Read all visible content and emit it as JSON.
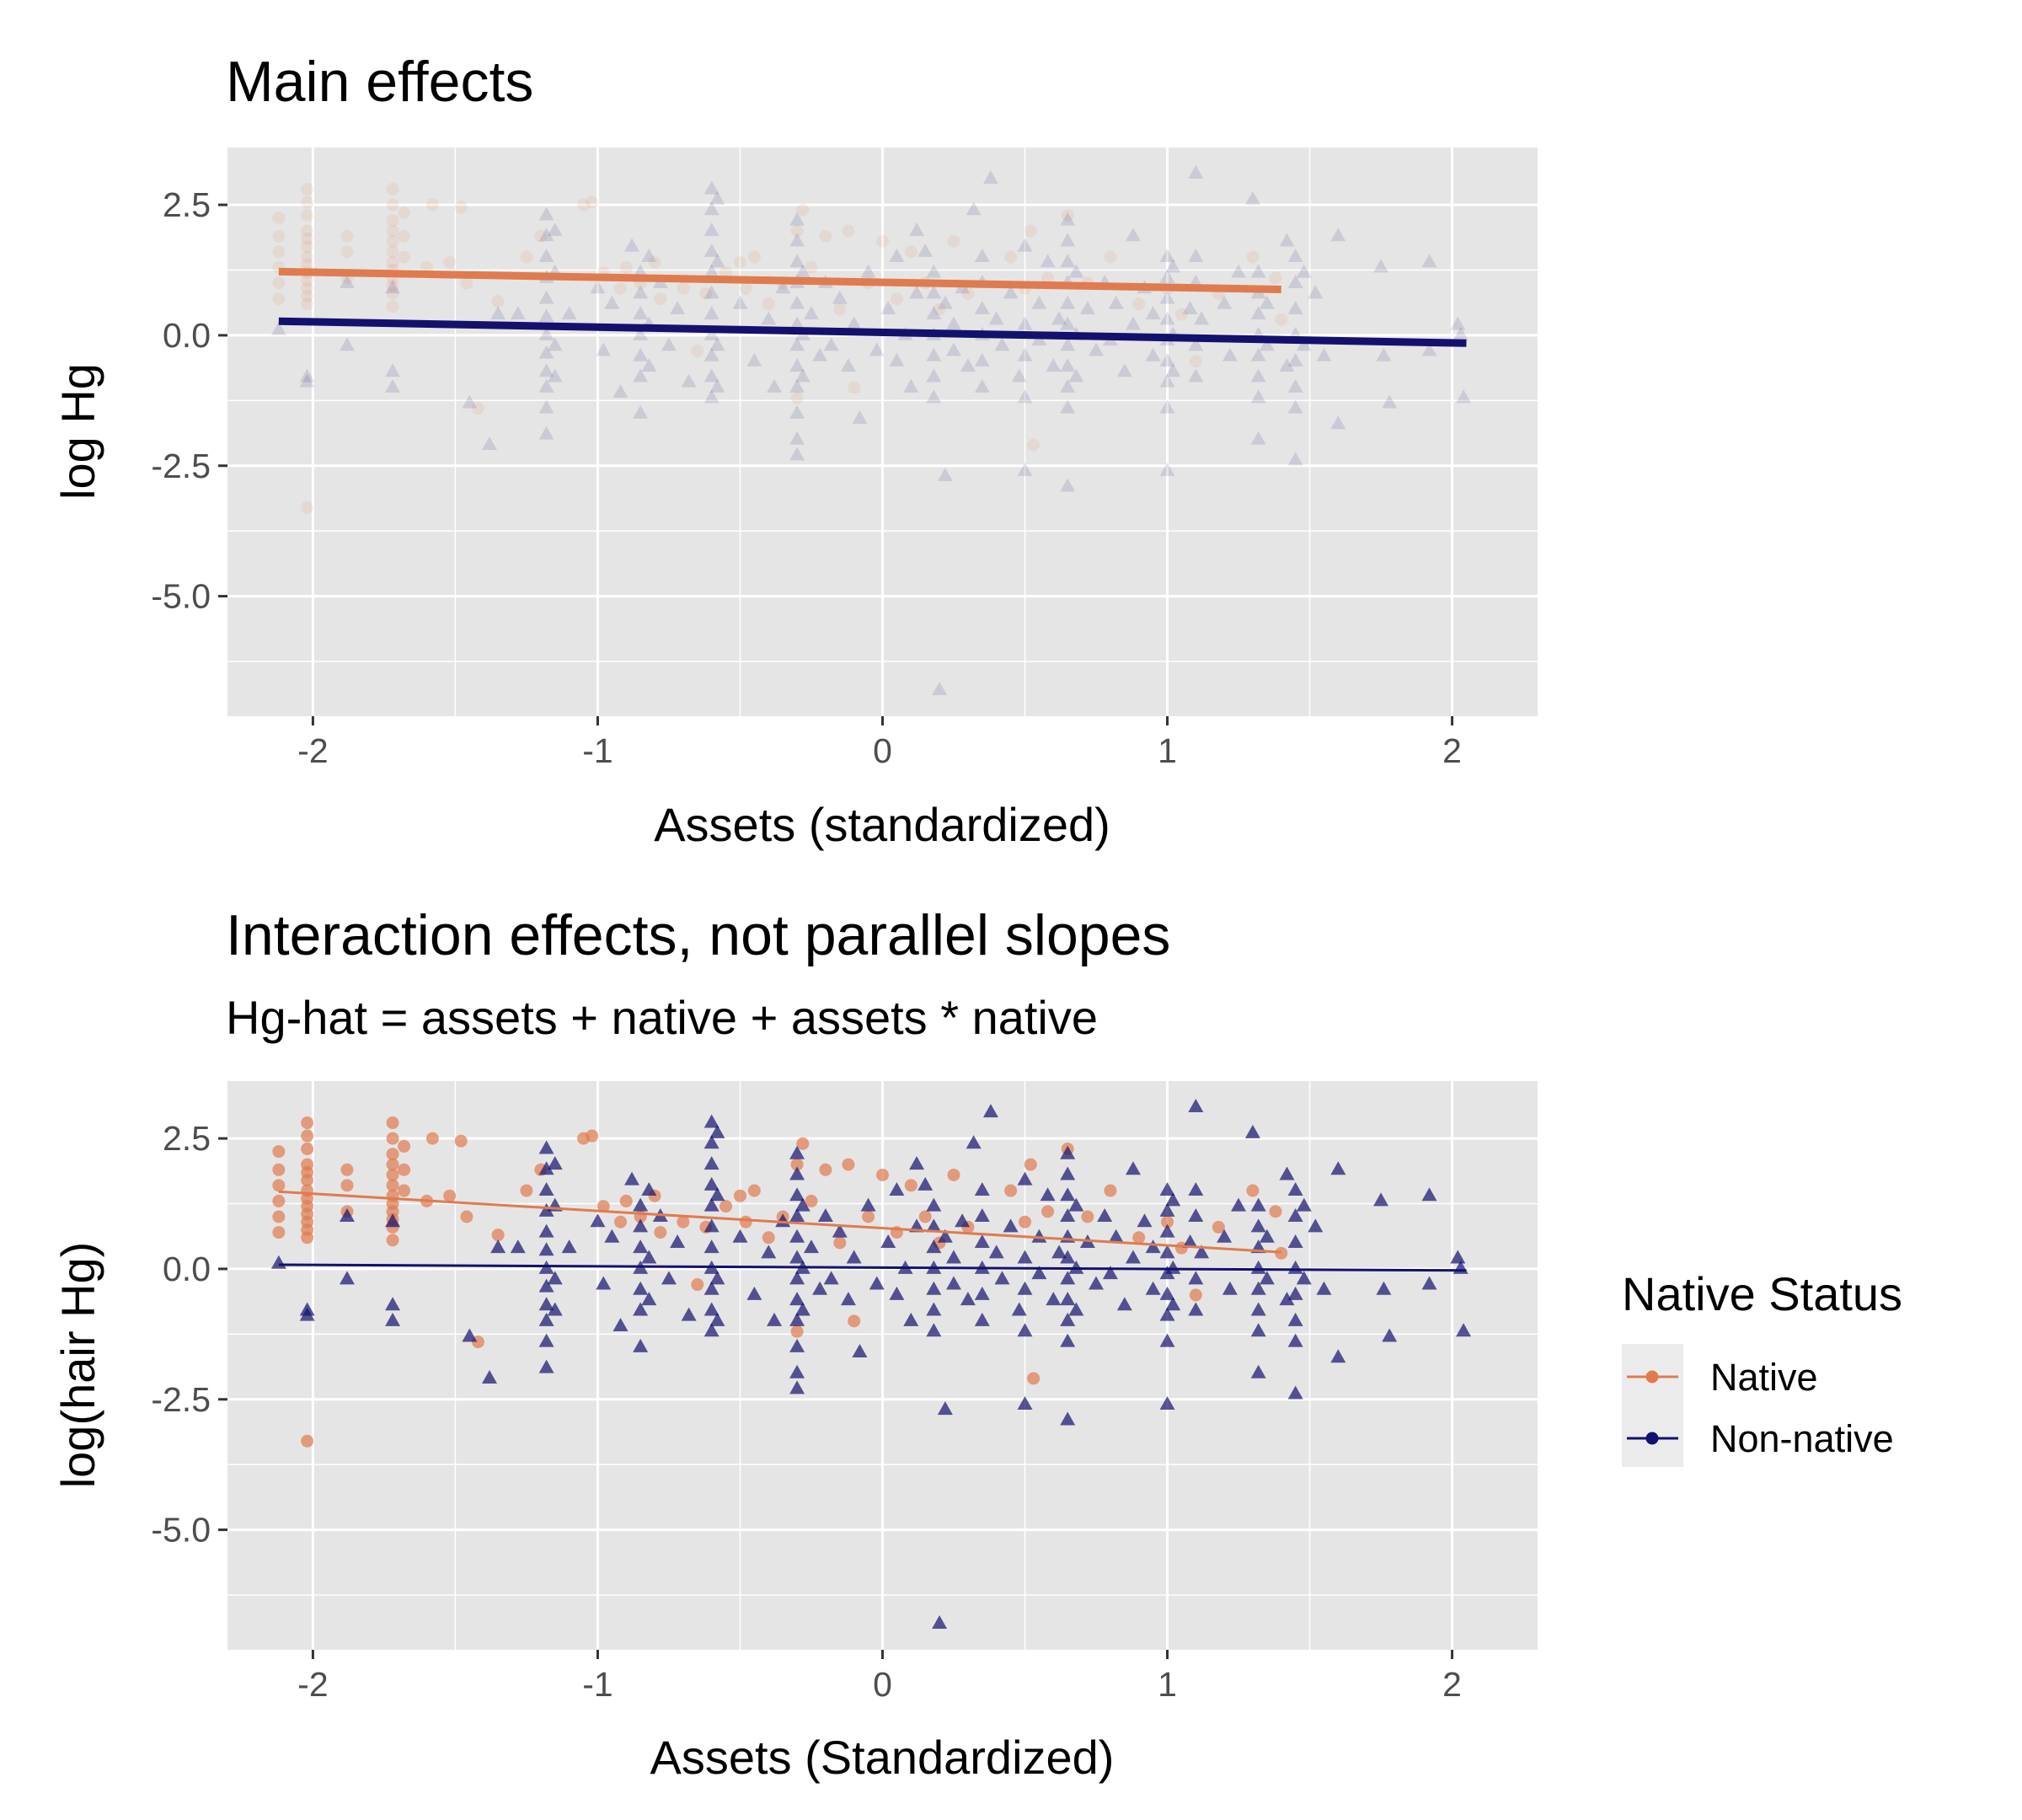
{
  "chart_data": [
    {
      "type": "scatter",
      "title": "Main effects",
      "subtitle": "",
      "xlabel": "Assets (standardized)",
      "ylabel": "log Hg",
      "xlim": [
        -2.3,
        2.3
      ],
      "ylim": [
        -7.3,
        3.6
      ],
      "xticks": [
        -2,
        -1,
        0,
        1,
        2
      ],
      "yticks": [
        2.5,
        0.0,
        -2.5,
        -5.0
      ],
      "xtick_labels": [
        "-2",
        "-1",
        "0",
        "1",
        "2"
      ],
      "ytick_labels": [
        "2.5",
        "0.0",
        "-2.5",
        "-5.0"
      ],
      "grid": true,
      "point_alpha": 0.12,
      "line_width": 9,
      "series": [
        {
          "key": "native",
          "fit": {
            "x": [
              -2.12,
              1.4
            ],
            "y": [
              1.22,
              0.88
            ]
          }
        },
        {
          "key": "nonnative",
          "fit": {
            "x": [
              -2.12,
              2.05
            ],
            "y": [
              0.27,
              -0.15
            ]
          }
        }
      ]
    },
    {
      "type": "scatter",
      "title": "Interaction effects, not parallel slopes",
      "subtitle": "Hg-hat = assets + native + assets * native",
      "xlabel": "Assets (Standardized)",
      "ylabel": "log(hair Hg)",
      "xlim": [
        -2.3,
        2.3
      ],
      "ylim": [
        -7.3,
        3.6
      ],
      "xticks": [
        -2,
        -1,
        0,
        1,
        2
      ],
      "yticks": [
        2.5,
        0.0,
        -2.5,
        -5.0
      ],
      "xtick_labels": [
        "-2",
        "-1",
        "0",
        "1",
        "2"
      ],
      "ytick_labels": [
        "2.5",
        "0.0",
        "-2.5",
        "-5.0"
      ],
      "grid": true,
      "point_alpha": 0.7,
      "line_width": 3,
      "series": [
        {
          "key": "native",
          "fit": {
            "x": [
              -2.12,
              1.4
            ],
            "y": [
              1.48,
              0.32
            ]
          }
        },
        {
          "key": "nonnative",
          "fit": {
            "x": [
              -2.12,
              2.05
            ],
            "y": [
              0.08,
              -0.03
            ]
          }
        }
      ]
    }
  ],
  "legend": {
    "title": "Native Status",
    "placement": "right",
    "entries": [
      {
        "key": "native",
        "label": "Native",
        "color": "#e07b4f",
        "shape": "circle"
      },
      {
        "key": "nonnative",
        "label": "Non-native",
        "color": "#14116e",
        "shape": "triangle"
      }
    ]
  },
  "points": {
    "native": [
      [
        -2.12,
        2.25
      ],
      [
        -2.12,
        1.9
      ],
      [
        -2.12,
        1.6
      ],
      [
        -2.12,
        1.3
      ],
      [
        -2.12,
        1.0
      ],
      [
        -2.12,
        0.7
      ],
      [
        -2.02,
        2.8
      ],
      [
        -2.02,
        2.55
      ],
      [
        -2.02,
        2.3
      ],
      [
        -2.02,
        2.0
      ],
      [
        -2.02,
        1.85
      ],
      [
        -2.02,
        1.7
      ],
      [
        -2.02,
        1.5
      ],
      [
        -2.02,
        1.35
      ],
      [
        -2.02,
        1.2
      ],
      [
        -2.02,
        1.05
      ],
      [
        -2.02,
        0.9
      ],
      [
        -2.02,
        0.75
      ],
      [
        -2.02,
        0.6
      ],
      [
        -2.02,
        -3.3
      ],
      [
        -1.88,
        1.9
      ],
      [
        -1.88,
        1.6
      ],
      [
        -1.88,
        1.1
      ],
      [
        -1.72,
        2.8
      ],
      [
        -1.72,
        2.5
      ],
      [
        -1.72,
        2.2
      ],
      [
        -1.72,
        2.0
      ],
      [
        -1.72,
        1.8
      ],
      [
        -1.72,
        1.6
      ],
      [
        -1.72,
        1.4
      ],
      [
        -1.72,
        1.25
      ],
      [
        -1.72,
        1.1
      ],
      [
        -1.72,
        0.95
      ],
      [
        -1.72,
        0.8
      ],
      [
        -1.72,
        0.55
      ],
      [
        -1.68,
        2.35
      ],
      [
        -1.68,
        1.9
      ],
      [
        -1.68,
        1.5
      ],
      [
        -1.6,
        1.3
      ],
      [
        -1.58,
        2.5
      ],
      [
        -1.52,
        1.4
      ],
      [
        -1.48,
        2.45
      ],
      [
        -1.46,
        1.0
      ],
      [
        -1.42,
        -1.4
      ],
      [
        -1.35,
        0.65
      ],
      [
        -1.25,
        1.5
      ],
      [
        -1.2,
        1.9
      ],
      [
        -1.05,
        2.5
      ],
      [
        -1.02,
        2.55
      ],
      [
        -0.98,
        1.2
      ],
      [
        -0.92,
        0.9
      ],
      [
        -0.9,
        1.3
      ],
      [
        -0.85,
        1.0
      ],
      [
        -0.8,
        1.4
      ],
      [
        -0.78,
        0.7
      ],
      [
        -0.7,
        0.9
      ],
      [
        -0.65,
        -0.3
      ],
      [
        -0.62,
        0.8
      ],
      [
        -0.55,
        1.2
      ],
      [
        -0.5,
        1.4
      ],
      [
        -0.48,
        0.9
      ],
      [
        -0.45,
        1.5
      ],
      [
        -0.4,
        0.6
      ],
      [
        -0.35,
        1.0
      ],
      [
        -0.3,
        2.0
      ],
      [
        -0.28,
        2.4
      ],
      [
        -0.25,
        1.3
      ],
      [
        -0.3,
        -1.2
      ],
      [
        -0.2,
        1.9
      ],
      [
        -0.15,
        0.5
      ],
      [
        -0.12,
        2.0
      ],
      [
        -0.1,
        -1.0
      ],
      [
        -0.05,
        1.0
      ],
      [
        0.0,
        1.8
      ],
      [
        0.05,
        0.7
      ],
      [
        0.1,
        1.6
      ],
      [
        0.15,
        1.0
      ],
      [
        0.2,
        0.5
      ],
      [
        0.25,
        1.8
      ],
      [
        0.3,
        0.8
      ],
      [
        0.45,
        1.5
      ],
      [
        0.5,
        0.9
      ],
      [
        0.52,
        2.0
      ],
      [
        0.53,
        -2.1
      ],
      [
        0.58,
        1.1
      ],
      [
        0.65,
        2.3
      ],
      [
        0.72,
        1.0
      ],
      [
        0.8,
        1.5
      ],
      [
        0.9,
        0.6
      ],
      [
        1.0,
        0.9
      ],
      [
        1.05,
        0.4
      ],
      [
        1.1,
        -0.5
      ],
      [
        1.18,
        0.8
      ],
      [
        1.3,
        1.5
      ],
      [
        1.38,
        1.1
      ],
      [
        1.4,
        0.3
      ]
    ],
    "nonnative": [
      [
        -2.12,
        0.1
      ],
      [
        -2.02,
        -0.8
      ],
      [
        -2.02,
        -0.9
      ],
      [
        -1.88,
        1.0
      ],
      [
        -1.88,
        -0.2
      ],
      [
        -1.72,
        -0.7
      ],
      [
        -1.72,
        -1.0
      ],
      [
        -1.72,
        0.9
      ],
      [
        -1.45,
        -1.3
      ],
      [
        -1.38,
        -2.1
      ],
      [
        -1.35,
        0.4
      ],
      [
        -1.28,
        0.4
      ],
      [
        -1.18,
        2.3
      ],
      [
        -1.18,
        1.9
      ],
      [
        -1.18,
        1.5
      ],
      [
        -1.18,
        1.1
      ],
      [
        -1.18,
        0.7
      ],
      [
        -1.18,
        0.35
      ],
      [
        -1.18,
        0.0
      ],
      [
        -1.18,
        -0.35
      ],
      [
        -1.18,
        -0.7
      ],
      [
        -1.18,
        -1.0
      ],
      [
        -1.18,
        -1.4
      ],
      [
        -1.18,
        -1.9
      ],
      [
        -1.15,
        2.0
      ],
      [
        -1.15,
        1.2
      ],
      [
        -1.15,
        -0.2
      ],
      [
        -1.15,
        -0.8
      ],
      [
        -1.1,
        0.4
      ],
      [
        -1.0,
        0.9
      ],
      [
        -0.98,
        -0.3
      ],
      [
        -0.95,
        0.6
      ],
      [
        -0.92,
        -1.1
      ],
      [
        -0.88,
        1.7
      ],
      [
        -0.85,
        1.2
      ],
      [
        -0.85,
        0.8
      ],
      [
        -0.85,
        0.4
      ],
      [
        -0.85,
        0.0
      ],
      [
        -0.85,
        -0.4
      ],
      [
        -0.85,
        -0.8
      ],
      [
        -0.85,
        -1.5
      ],
      [
        -0.82,
        1.5
      ],
      [
        -0.82,
        0.2
      ],
      [
        -0.82,
        -0.6
      ],
      [
        -0.78,
        1.0
      ],
      [
        -0.75,
        -0.2
      ],
      [
        -0.72,
        0.5
      ],
      [
        -0.68,
        -0.9
      ],
      [
        -0.6,
        2.8
      ],
      [
        -0.6,
        2.4
      ],
      [
        -0.6,
        2.0
      ],
      [
        -0.6,
        1.6
      ],
      [
        -0.6,
        1.2
      ],
      [
        -0.6,
        0.8
      ],
      [
        -0.6,
        0.4
      ],
      [
        -0.6,
        0.0
      ],
      [
        -0.6,
        -0.4
      ],
      [
        -0.6,
        -0.8
      ],
      [
        -0.6,
        -1.2
      ],
      [
        -0.58,
        2.6
      ],
      [
        -0.58,
        1.4
      ],
      [
        -0.58,
        -0.2
      ],
      [
        -0.58,
        -1.0
      ],
      [
        -0.5,
        0.6
      ],
      [
        -0.45,
        -0.5
      ],
      [
        -0.4,
        0.3
      ],
      [
        -0.38,
        -1.0
      ],
      [
        -0.35,
        0.9
      ],
      [
        -0.3,
        2.2
      ],
      [
        -0.3,
        1.8
      ],
      [
        -0.3,
        1.4
      ],
      [
        -0.3,
        1.0
      ],
      [
        -0.3,
        0.6
      ],
      [
        -0.3,
        0.2
      ],
      [
        -0.3,
        -0.2
      ],
      [
        -0.3,
        -0.6
      ],
      [
        -0.3,
        -1.0
      ],
      [
        -0.3,
        -1.5
      ],
      [
        -0.3,
        -2.0
      ],
      [
        -0.3,
        -2.3
      ],
      [
        -0.28,
        1.2
      ],
      [
        -0.28,
        0.0
      ],
      [
        -0.28,
        -0.8
      ],
      [
        -0.25,
        0.4
      ],
      [
        -0.22,
        -0.4
      ],
      [
        -0.2,
        1.0
      ],
      [
        -0.18,
        -0.2
      ],
      [
        -0.15,
        0.7
      ],
      [
        -0.12,
        -0.6
      ],
      [
        -0.1,
        0.2
      ],
      [
        -0.08,
        -1.6
      ],
      [
        -0.05,
        1.2
      ],
      [
        -0.02,
        -0.3
      ],
      [
        0.02,
        0.5
      ],
      [
        0.05,
        -0.5
      ],
      [
        0.05,
        1.5
      ],
      [
        0.08,
        0.0
      ],
      [
        0.1,
        -1.0
      ],
      [
        0.12,
        2.0
      ],
      [
        0.12,
        0.8
      ],
      [
        0.15,
        1.6
      ],
      [
        0.18,
        1.2
      ],
      [
        0.18,
        0.8
      ],
      [
        0.18,
        0.4
      ],
      [
        0.18,
        0.0
      ],
      [
        0.18,
        -0.4
      ],
      [
        0.18,
        -0.8
      ],
      [
        0.18,
        -1.2
      ],
      [
        0.2,
        -6.8
      ],
      [
        0.22,
        -2.7
      ],
      [
        0.22,
        0.6
      ],
      [
        0.25,
        0.2
      ],
      [
        0.25,
        -0.3
      ],
      [
        0.28,
        0.9
      ],
      [
        0.3,
        -0.6
      ],
      [
        0.32,
        2.4
      ],
      [
        0.35,
        1.5
      ],
      [
        0.35,
        1.0
      ],
      [
        0.35,
        0.5
      ],
      [
        0.35,
        0.0
      ],
      [
        0.35,
        -0.5
      ],
      [
        0.35,
        -1.0
      ],
      [
        0.38,
        3.0
      ],
      [
        0.4,
        0.3
      ],
      [
        0.42,
        -0.2
      ],
      [
        0.45,
        0.8
      ],
      [
        0.48,
        -0.8
      ],
      [
        0.5,
        -2.6
      ],
      [
        0.5,
        1.7
      ],
      [
        0.5,
        0.2
      ],
      [
        0.5,
        -0.4
      ],
      [
        0.5,
        -1.2
      ],
      [
        0.55,
        0.6
      ],
      [
        0.55,
        -0.1
      ],
      [
        0.58,
        1.4
      ],
      [
        0.6,
        -0.6
      ],
      [
        0.62,
        0.3
      ],
      [
        0.65,
        2.2
      ],
      [
        0.65,
        1.8
      ],
      [
        0.65,
        1.4
      ],
      [
        0.65,
        1.0
      ],
      [
        0.65,
        0.6
      ],
      [
        0.65,
        0.2
      ],
      [
        0.65,
        -0.2
      ],
      [
        0.65,
        -0.6
      ],
      [
        0.65,
        -1.0
      ],
      [
        0.65,
        -1.4
      ],
      [
        0.65,
        -2.9
      ],
      [
        0.68,
        1.2
      ],
      [
        0.68,
        0.0
      ],
      [
        0.68,
        -0.8
      ],
      [
        0.72,
        0.5
      ],
      [
        0.75,
        -0.3
      ],
      [
        0.78,
        1.0
      ],
      [
        0.8,
        -0.1
      ],
      [
        0.82,
        0.6
      ],
      [
        0.85,
        -0.7
      ],
      [
        0.88,
        0.2
      ],
      [
        0.88,
        1.9
      ],
      [
        0.92,
        0.9
      ],
      [
        0.95,
        -0.4
      ],
      [
        0.95,
        0.4
      ],
      [
        1.0,
        1.5
      ],
      [
        1.0,
        1.1
      ],
      [
        1.0,
        0.7
      ],
      [
        1.0,
        0.3
      ],
      [
        1.0,
        -0.1
      ],
      [
        1.0,
        -0.5
      ],
      [
        1.0,
        -0.9
      ],
      [
        1.0,
        -1.4
      ],
      [
        1.0,
        -2.6
      ],
      [
        1.02,
        1.3
      ],
      [
        1.02,
        0.0
      ],
      [
        1.02,
        -0.7
      ],
      [
        1.08,
        0.5
      ],
      [
        1.1,
        3.1
      ],
      [
        1.1,
        1.5
      ],
      [
        1.1,
        1.0
      ],
      [
        1.1,
        -0.2
      ],
      [
        1.1,
        -0.8
      ],
      [
        1.12,
        0.3
      ],
      [
        1.2,
        0.6
      ],
      [
        1.22,
        -0.4
      ],
      [
        1.25,
        1.2
      ],
      [
        1.3,
        2.6
      ],
      [
        1.32,
        1.2
      ],
      [
        1.32,
        0.8
      ],
      [
        1.32,
        0.4
      ],
      [
        1.32,
        0.0
      ],
      [
        1.32,
        -0.4
      ],
      [
        1.32,
        -0.8
      ],
      [
        1.32,
        -1.2
      ],
      [
        1.32,
        -2.0
      ],
      [
        1.35,
        0.6
      ],
      [
        1.35,
        -0.2
      ],
      [
        1.42,
        1.8
      ],
      [
        1.42,
        -0.6
      ],
      [
        1.45,
        1.5
      ],
      [
        1.45,
        1.0
      ],
      [
        1.45,
        0.5
      ],
      [
        1.45,
        0.0
      ],
      [
        1.45,
        -0.5
      ],
      [
        1.45,
        -1.0
      ],
      [
        1.45,
        -1.4
      ],
      [
        1.45,
        -2.4
      ],
      [
        1.48,
        1.2
      ],
      [
        1.48,
        -0.2
      ],
      [
        1.52,
        0.8
      ],
      [
        1.55,
        -0.4
      ],
      [
        1.6,
        1.9
      ],
      [
        1.6,
        -1.7
      ],
      [
        1.75,
        1.3
      ],
      [
        1.76,
        -0.4
      ],
      [
        1.78,
        -1.3
      ],
      [
        1.92,
        1.4
      ],
      [
        1.92,
        -0.3
      ],
      [
        2.02,
        0.2
      ],
      [
        2.03,
        0.0
      ],
      [
        2.04,
        -1.2
      ]
    ]
  }
}
